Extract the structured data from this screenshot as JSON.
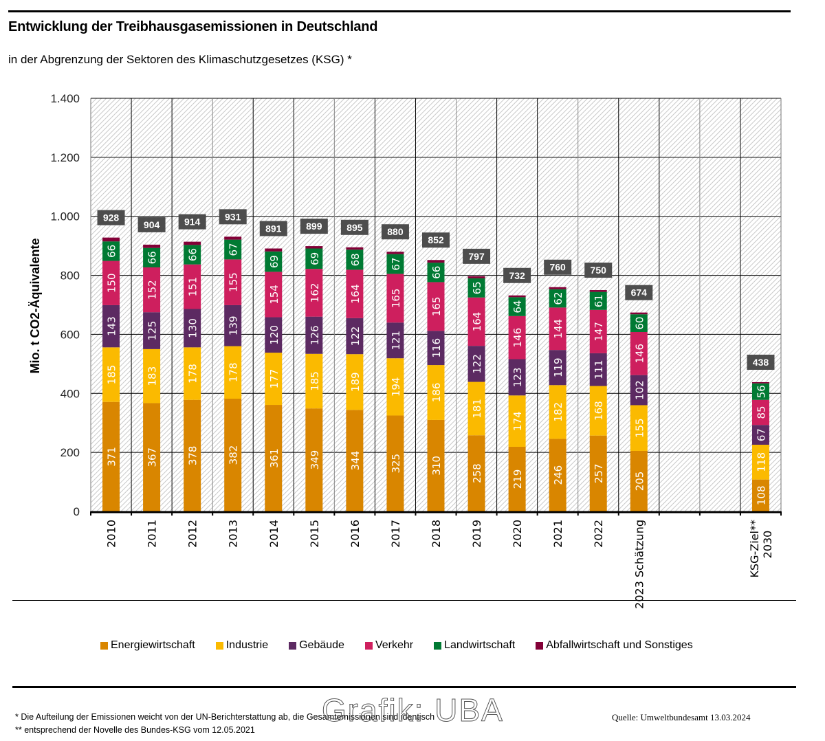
{
  "title": "Entwicklung der Treibhausgasemissionen in Deutschland",
  "subtitle": "in der Abgrenzung der Sektoren des Klimaschutzgesetzes (KSG) *",
  "footnotes": {
    "note1": "* Die Aufteilung der Emissionen weicht von der UN-Berichterstattung ab, die Gesamtemissionen sind identisch",
    "note2": "** entsprechend der Novelle des Bundes-KSG vom 12.05.2021",
    "watermark": "Grafik: UBA",
    "source": "Quelle: Umweltbundesamt  13.03.2024"
  },
  "chart_data": {
    "type": "bar",
    "stacked": true,
    "title": "Entwicklung der Treibhausgasemissionen in Deutschland",
    "subtitle": "in der Abgrenzung der Sektoren des Klimaschutzgesetzes (KSG) *",
    "xlabel": "",
    "ylabel": "Mio. t CO2-Äquivalente",
    "ylim": [
      0,
      1400
    ],
    "yticks": [
      0,
      200,
      400,
      600,
      800,
      1000,
      1200,
      1400
    ],
    "ytick_labels": [
      "0",
      "200",
      "400",
      "600",
      "800",
      "1.000",
      "1.200",
      "1.400"
    ],
    "grid": true,
    "legend_position": "bottom",
    "categories": [
      "2010",
      "2011",
      "2012",
      "2013",
      "2014",
      "2015",
      "2016",
      "2017",
      "2018",
      "2019",
      "2020",
      "2021",
      "2022",
      "2023 Schätzung",
      "",
      "",
      "KSG-Ziel**\n2030"
    ],
    "category_lines": [
      [
        "2010"
      ],
      [
        "2011"
      ],
      [
        "2012"
      ],
      [
        "2013"
      ],
      [
        "2014"
      ],
      [
        "2015"
      ],
      [
        "2016"
      ],
      [
        "2017"
      ],
      [
        "2018"
      ],
      [
        "2019"
      ],
      [
        "2020"
      ],
      [
        "2021"
      ],
      [
        "2022"
      ],
      [
        "2023 Schätzung"
      ],
      [],
      [],
      [
        "KSG-Ziel**",
        "2030"
      ]
    ],
    "totals": [
      928,
      904,
      914,
      931,
      891,
      899,
      895,
      880,
      852,
      797,
      732,
      760,
      750,
      674,
      null,
      null,
      438
    ],
    "series": [
      {
        "name": "Energiewirtschaft",
        "color": "#D98600",
        "label_values": true,
        "values": [
          371,
          367,
          378,
          382,
          361,
          349,
          344,
          325,
          310,
          258,
          219,
          246,
          257,
          205,
          null,
          null,
          108
        ]
      },
      {
        "name": "Industrie",
        "color": "#FBBA00",
        "label_values": true,
        "values": [
          185,
          183,
          178,
          178,
          177,
          185,
          189,
          194,
          186,
          181,
          174,
          182,
          168,
          155,
          null,
          null,
          118
        ]
      },
      {
        "name": "Gebäude",
        "color": "#5C2A62",
        "label_values": true,
        "values": [
          143,
          125,
          130,
          139,
          120,
          126,
          122,
          121,
          116,
          122,
          123,
          119,
          111,
          102,
          null,
          null,
          67
        ]
      },
      {
        "name": "Verkehr",
        "color": "#CE1F5E",
        "label_values": true,
        "values": [
          150,
          152,
          151,
          155,
          154,
          162,
          164,
          165,
          165,
          164,
          146,
          144,
          147,
          146,
          null,
          null,
          85
        ]
      },
      {
        "name": "Landwirtschaft",
        "color": "#007A33",
        "label_values": true,
        "values": [
          66,
          66,
          66,
          67,
          69,
          69,
          68,
          67,
          66,
          65,
          64,
          62,
          61,
          60,
          null,
          null,
          56
        ]
      },
      {
        "name": "Abfallwirtschaft und Sonstiges",
        "color": "#830037",
        "label_values": false,
        "values": [
          13,
          11,
          11,
          10,
          10,
          8,
          8,
          8,
          9,
          7,
          6,
          7,
          6,
          6,
          null,
          null,
          4
        ]
      }
    ],
    "total_label_color": "#4D4D4D"
  }
}
